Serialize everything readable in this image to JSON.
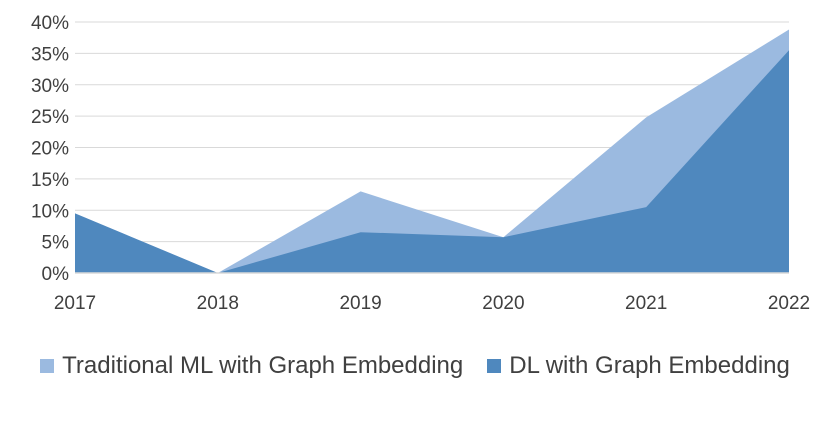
{
  "chart_data": {
    "type": "area",
    "title": "",
    "xlabel": "",
    "ylabel": "",
    "categories": [
      "2017",
      "2018",
      "2019",
      "2020",
      "2021",
      "2022"
    ],
    "ylim": [
      0,
      40
    ],
    "y_ticks": [
      "0%",
      "5%",
      "10%",
      "15%",
      "20%",
      "25%",
      "30%",
      "35%",
      "40%"
    ],
    "grid": true,
    "legend_position": "bottom",
    "series": [
      {
        "name": "Traditional ML with Graph Embedding",
        "color": "#9bbae0",
        "values": [
          9.5,
          0,
          13,
          5.7,
          24.8,
          38.8
        ]
      },
      {
        "name": "DL with Graph Embedding",
        "color": "#4f88be",
        "values": [
          9.5,
          0,
          6.5,
          5.7,
          10.5,
          35.5
        ]
      }
    ]
  }
}
